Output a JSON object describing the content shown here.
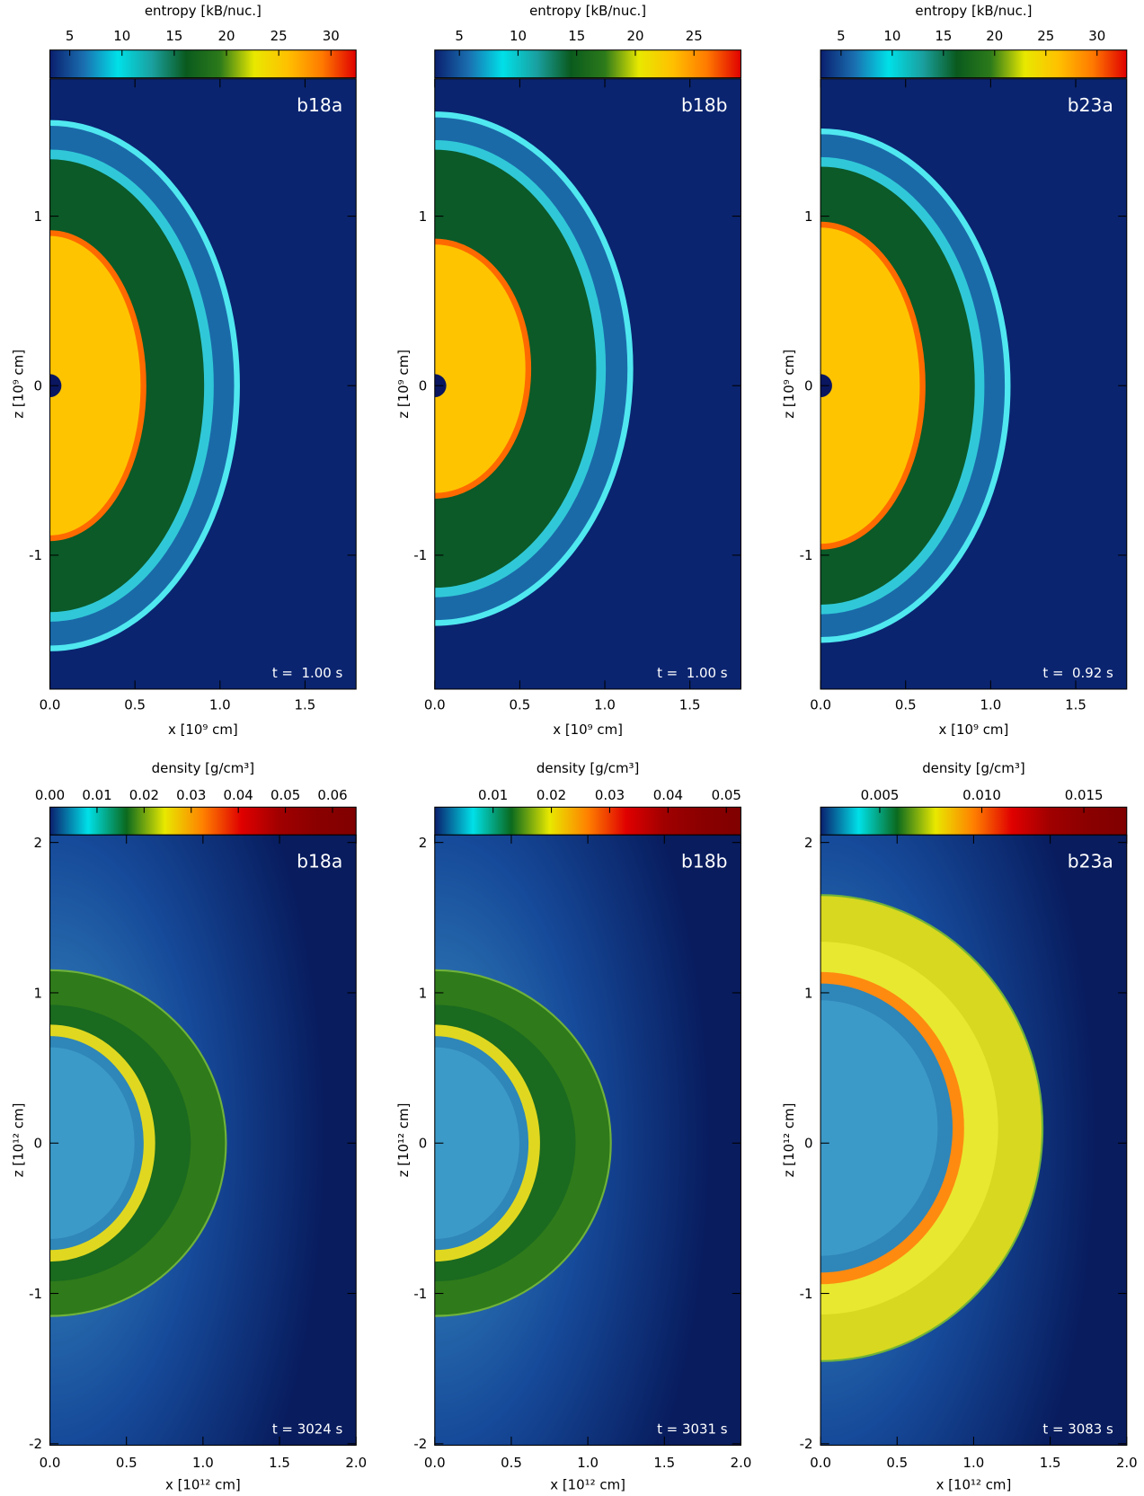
{
  "chart_data": [
    {
      "type": "image",
      "title": "b18a",
      "annotation": "t =  1.00 s",
      "xlabel": "x [10⁹ cm]",
      "ylabel": "z [10⁹ cm]",
      "xlim": [
        0,
        1.8
      ],
      "ylim": [
        -1.79,
        1.81
      ],
      "xticks": [
        {
          "value": 0,
          "label": "0.0"
        },
        {
          "value": 0.5,
          "label": "0.5"
        },
        {
          "value": 1,
          "label": "1.0"
        },
        {
          "value": 1.5,
          "label": "1.5"
        }
      ],
      "yticks": [
        -1,
        0,
        1
      ],
      "colorbar": {
        "label": "entropy [kB/nuc.]",
        "lim": [
          3.1,
          32.4
        ],
        "ticks": [
          5,
          10,
          15,
          20,
          25,
          30
        ],
        "colors": [
          "#0a1f6e",
          "#1a6fb0",
          "#00e0e8",
          "#1aa0a0",
          "#0a5a1e",
          "#2c7a1a",
          "#e8e800",
          "#ffc000",
          "#ff7a00",
          "#e00000"
        ]
      }
    },
    {
      "type": "image",
      "title": "b18b",
      "annotation": "t =  1.00 s",
      "xlabel": "x [10⁹ cm]",
      "ylabel": "z [10⁹ cm]",
      "xlim": [
        0,
        1.8
      ],
      "ylim": [
        -1.79,
        1.81
      ],
      "xticks": [
        {
          "value": 0,
          "label": "0.0"
        },
        {
          "value": 0.5,
          "label": "0.5"
        },
        {
          "value": 1,
          "label": "1.0"
        },
        {
          "value": 1.5,
          "label": "1.5"
        }
      ],
      "yticks": [
        -1,
        0,
        1
      ],
      "colorbar": {
        "label": "entropy [kB/nuc.]",
        "lim": [
          2.9,
          29.0
        ],
        "ticks": [
          5,
          10,
          15,
          20,
          25
        ],
        "colors": [
          "#0a1f6e",
          "#1a6fb0",
          "#00e0e8",
          "#1aa0a0",
          "#0a5a1e",
          "#2c7a1a",
          "#e8e800",
          "#ffc000",
          "#ff7a00",
          "#e00000"
        ]
      }
    },
    {
      "type": "image",
      "title": "b23a",
      "annotation": "t =  0.92 s",
      "xlabel": "x [10⁹ cm]",
      "ylabel": "z [10⁹ cm]",
      "xlim": [
        0,
        1.8
      ],
      "ylim": [
        -1.79,
        1.81
      ],
      "xticks": [
        {
          "value": 0,
          "label": "0.0"
        },
        {
          "value": 0.5,
          "label": "0.5"
        },
        {
          "value": 1,
          "label": "1.0"
        },
        {
          "value": 1.5,
          "label": "1.5"
        }
      ],
      "yticks": [
        -1,
        0,
        1
      ],
      "colorbar": {
        "label": "entropy [kB/nuc.]",
        "lim": [
          3.0,
          32.9
        ],
        "ticks": [
          5,
          10,
          15,
          20,
          25,
          30
        ],
        "colors": [
          "#0a1f6e",
          "#1a6fb0",
          "#00e0e8",
          "#1aa0a0",
          "#0a5a1e",
          "#2c7a1a",
          "#e8e800",
          "#ffc000",
          "#ff7a00",
          "#e00000"
        ]
      }
    },
    {
      "type": "image",
      "title": "b18a",
      "annotation": "t = 3024 s",
      "xlabel": "x [10¹² cm]",
      "ylabel": "z [10¹² cm]",
      "xlim": [
        0,
        2.0
      ],
      "ylim": [
        -2.01,
        2.05
      ],
      "xticks": [
        {
          "value": 0,
          "label": "0.0"
        },
        {
          "value": 0.5,
          "label": "0.5"
        },
        {
          "value": 1,
          "label": "1.0"
        },
        {
          "value": 1.5,
          "label": "1.5"
        },
        {
          "value": 2,
          "label": "2.0"
        }
      ],
      "yticks": [
        -2,
        -1,
        0,
        1,
        2
      ],
      "colorbar": {
        "label": "density [g/cm³]",
        "lim": [
          0,
          0.065
        ],
        "ticks": [
          {
            "value": 0,
            "label": "0.00"
          },
          {
            "value": 0.01,
            "label": "0.01"
          },
          {
            "value": 0.02,
            "label": "0.02"
          },
          {
            "value": 0.03,
            "label": "0.03"
          },
          {
            "value": 0.04,
            "label": "0.04"
          },
          {
            "value": 0.05,
            "label": "0.05"
          },
          {
            "value": 0.06,
            "label": "0.06"
          }
        ],
        "colors": [
          "#0a1f6e",
          "#00e0e8",
          "#0a6a1e",
          "#e8e800",
          "#ff8000",
          "#e00000",
          "#a00000",
          "#8a0000",
          "#800000"
        ]
      }
    },
    {
      "type": "image",
      "title": "b18b",
      "annotation": "t = 3031 s",
      "xlabel": "x [10¹² cm]",
      "ylabel": "z [10¹² cm]",
      "xlim": [
        0,
        2.0
      ],
      "ylim": [
        -2.01,
        2.05
      ],
      "xticks": [
        {
          "value": 0,
          "label": "0.0"
        },
        {
          "value": 0.5,
          "label": "0.5"
        },
        {
          "value": 1,
          "label": "1.0"
        },
        {
          "value": 1.5,
          "label": "1.5"
        },
        {
          "value": 2,
          "label": "2.0"
        }
      ],
      "yticks": [
        -2,
        -1,
        0,
        1,
        2
      ],
      "colorbar": {
        "label": "density [g/cm³]",
        "lim": [
          0,
          0.0525
        ],
        "ticks": [
          0.01,
          0.02,
          0.03,
          0.04,
          0.05
        ],
        "colors": [
          "#0a1f6e",
          "#00e0e8",
          "#0a6a1e",
          "#e8e800",
          "#ff8000",
          "#e00000",
          "#a00000",
          "#8a0000",
          "#800000"
        ]
      }
    },
    {
      "type": "image",
      "title": "b23a",
      "annotation": "t = 3083 s",
      "xlabel": "x [10¹² cm]",
      "ylabel": "z [10¹² cm]",
      "xlim": [
        0,
        2.0
      ],
      "ylim": [
        -2.01,
        2.05
      ],
      "xticks": [
        {
          "value": 0,
          "label": "0.0"
        },
        {
          "value": 0.5,
          "label": "0.5"
        },
        {
          "value": 1,
          "label": "1.0"
        },
        {
          "value": 1.5,
          "label": "1.5"
        },
        {
          "value": 2,
          "label": "2.0"
        }
      ],
      "yticks": [
        -2,
        -1,
        0,
        1,
        2
      ],
      "colorbar": {
        "label": "density [g/cm³]",
        "lim": [
          0.0021,
          0.0171
        ],
        "ticks": [
          {
            "value": 0.005,
            "label": "0.005"
          },
          {
            "value": 0.01,
            "label": "0.010"
          },
          {
            "value": 0.015,
            "label": "0.015"
          }
        ],
        "colors": [
          "#0a1f6e",
          "#00e0e8",
          "#0a6a1e",
          "#e8e800",
          "#ff8000",
          "#e00000",
          "#a00000",
          "#8a0000",
          "#800000"
        ]
      }
    }
  ]
}
